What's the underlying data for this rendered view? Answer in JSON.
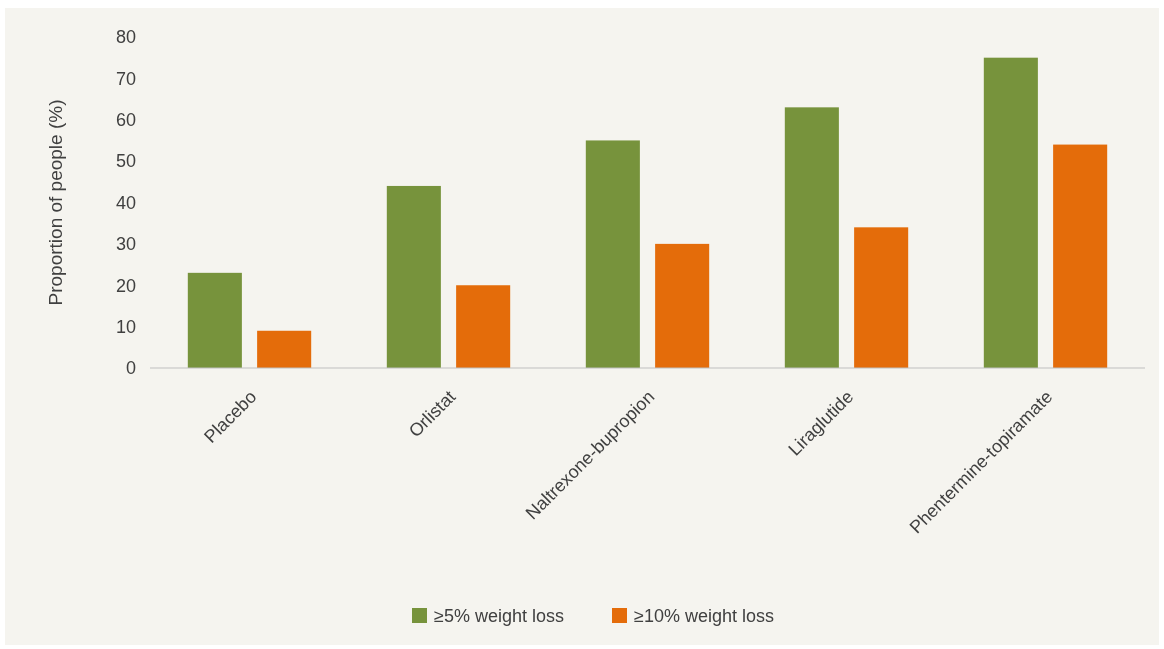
{
  "chart_data": {
    "type": "bar",
    "ylabel": "Proportion of people (%)",
    "categories": [
      "Placebo",
      "Orlistat",
      "Naltrexone-bupropion",
      "Liraglutide",
      "Phentermine-topiramate"
    ],
    "series": [
      {
        "name": "≥5% weight loss",
        "color": "#77933c",
        "values": [
          23,
          44,
          55,
          63,
          75
        ]
      },
      {
        "name": "≥10% weight loss",
        "color": "#e46c0a",
        "values": [
          9,
          20,
          30,
          34,
          54
        ]
      }
    ],
    "ylim": [
      0,
      80
    ],
    "yticks": [
      0,
      10,
      20,
      30,
      40,
      50,
      60,
      70,
      80
    ],
    "grid": false,
    "legend": "bottom"
  }
}
